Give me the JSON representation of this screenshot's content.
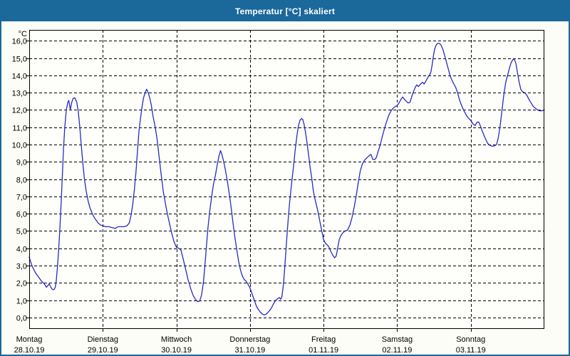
{
  "window": {
    "title": "Temperatur [°C] skaliert"
  },
  "colors": {
    "titlebar_bg": "#1b689b",
    "titlebar_text": "#ffffff",
    "window_border": "#1b689b",
    "content_bg": "#fcfdf6",
    "plot_bg": "#fefefb",
    "grid_line": "#000000",
    "axis_line": "#000000",
    "label_text": "#000000",
    "series_line": "#2a2ac4"
  },
  "chart_data": {
    "type": "line",
    "title": "Temperatur [°C] skaliert",
    "unit_label": "°C",
    "grid": "dashed",
    "legend_position": "none",
    "y_axis": {
      "min": 0,
      "max": 16,
      "tick_step": 1,
      "tick_labels": [
        "16,0",
        "15,0",
        "14,0",
        "13,0",
        "12,0",
        "11,0",
        "10,0",
        "9,0",
        "8,0",
        "7,0",
        "6,0",
        "5,0",
        "4,0",
        "3,0",
        "2,0",
        "1,0",
        "0,0"
      ]
    },
    "x_axis": {
      "total_hours": 168,
      "day_tick_hours": [
        0,
        24,
        48,
        72,
        96,
        120,
        144
      ],
      "gridline_hours": [
        24,
        48,
        72,
        96,
        120,
        144
      ],
      "days": [
        {
          "name": "Montag",
          "date": "28.10.19"
        },
        {
          "name": "Dienstag",
          "date": "29.10.19"
        },
        {
          "name": "Mittwoch",
          "date": "30.10.19"
        },
        {
          "name": "Donnerstag",
          "date": "31.10.19"
        },
        {
          "name": "Freitag",
          "date": "01.11.19"
        },
        {
          "name": "Samstag",
          "date": "02.11.19"
        },
        {
          "name": "Sonntag",
          "date": "03.11.19"
        }
      ]
    },
    "series": [
      {
        "name": "Temperatur",
        "color": "#2a2ac4",
        "points_hour_temp": [
          [
            0,
            3.5
          ],
          [
            0.5,
            3.2
          ],
          [
            1,
            2.95
          ],
          [
            2,
            2.6
          ],
          [
            3,
            2.35
          ],
          [
            4,
            2.1
          ],
          [
            4.9,
            1.95
          ],
          [
            5.6,
            1.75
          ],
          [
            6.1,
            1.85
          ],
          [
            6.5,
            1.95
          ],
          [
            7.2,
            1.7
          ],
          [
            7.7,
            1.6
          ],
          [
            8.1,
            1.62
          ],
          [
            8.5,
            1.75
          ],
          [
            8.8,
            2.1
          ],
          [
            9.2,
            2.9
          ],
          [
            9.6,
            3.9
          ],
          [
            10,
            5.1
          ],
          [
            10.4,
            6.6
          ],
          [
            10.8,
            8.2
          ],
          [
            11.2,
            9.8
          ],
          [
            11.6,
            11.0
          ],
          [
            12.1,
            12.0
          ],
          [
            12.6,
            12.45
          ],
          [
            12.9,
            12.55
          ],
          [
            13.1,
            12.35
          ],
          [
            13.4,
            12.0
          ],
          [
            13.8,
            12.4
          ],
          [
            14.3,
            12.65
          ],
          [
            14.9,
            12.7
          ],
          [
            15.5,
            12.45
          ],
          [
            16,
            11.9
          ],
          [
            16.5,
            11.0
          ],
          [
            17,
            9.9
          ],
          [
            17.5,
            8.9
          ],
          [
            18,
            8.0
          ],
          [
            18.6,
            7.3
          ],
          [
            19.2,
            6.75
          ],
          [
            19.9,
            6.3
          ],
          [
            20.7,
            5.95
          ],
          [
            21.5,
            5.7
          ],
          [
            22.3,
            5.5
          ],
          [
            23.2,
            5.35
          ],
          [
            24,
            5.3
          ],
          [
            25,
            5.25
          ],
          [
            26,
            5.25
          ],
          [
            27,
            5.2
          ],
          [
            28,
            5.15
          ],
          [
            29,
            5.25
          ],
          [
            30,
            5.25
          ],
          [
            31,
            5.25
          ],
          [
            31.8,
            5.3
          ],
          [
            32.6,
            5.45
          ],
          [
            33.2,
            5.9
          ],
          [
            33.8,
            6.6
          ],
          [
            34.3,
            7.4
          ],
          [
            34.8,
            8.4
          ],
          [
            35.3,
            9.6
          ],
          [
            35.8,
            10.8
          ],
          [
            36.3,
            11.5
          ],
          [
            36.8,
            12.2
          ],
          [
            37.3,
            12.7
          ],
          [
            37.8,
            13.0
          ],
          [
            38.3,
            13.2
          ],
          [
            38.8,
            13.0
          ],
          [
            39.3,
            12.7
          ],
          [
            39.8,
            12.3
          ],
          [
            40.4,
            11.6
          ],
          [
            41.1,
            11.0
          ],
          [
            41.7,
            10.3
          ],
          [
            42.3,
            9.4
          ],
          [
            43,
            8.3
          ],
          [
            43.7,
            7.3
          ],
          [
            44.4,
            6.6
          ],
          [
            45.1,
            5.95
          ],
          [
            45.8,
            5.4
          ],
          [
            46.5,
            4.85
          ],
          [
            47.2,
            4.4
          ],
          [
            48,
            4.05
          ],
          [
            48.8,
            4.0
          ],
          [
            49.5,
            3.9
          ],
          [
            50.2,
            3.4
          ],
          [
            51,
            2.8
          ],
          [
            51.8,
            2.2
          ],
          [
            52.6,
            1.7
          ],
          [
            53.4,
            1.3
          ],
          [
            54.2,
            1.05
          ],
          [
            54.9,
            0.92
          ],
          [
            55.6,
            0.95
          ],
          [
            56.2,
            1.3
          ],
          [
            56.8,
            2.0
          ],
          [
            57.3,
            3.0
          ],
          [
            57.8,
            4.1
          ],
          [
            58.3,
            5.2
          ],
          [
            58.9,
            6.2
          ],
          [
            59.5,
            7.0
          ],
          [
            60.1,
            7.7
          ],
          [
            60.7,
            8.2
          ],
          [
            61.3,
            8.8
          ],
          [
            61.9,
            9.35
          ],
          [
            62.4,
            9.65
          ],
          [
            62.9,
            9.4
          ],
          [
            63.5,
            8.95
          ],
          [
            64.1,
            8.4
          ],
          [
            64.7,
            7.8
          ],
          [
            65.3,
            7.1
          ],
          [
            65.9,
            6.3
          ],
          [
            66.5,
            5.4
          ],
          [
            67.1,
            4.6
          ],
          [
            67.7,
            3.9
          ],
          [
            68.3,
            3.25
          ],
          [
            68.9,
            2.75
          ],
          [
            69.5,
            2.4
          ],
          [
            70.1,
            2.2
          ],
          [
            70.7,
            2.1
          ],
          [
            71.4,
            1.9
          ],
          [
            72,
            1.7
          ],
          [
            72.7,
            1.35
          ],
          [
            73.4,
            1.0
          ],
          [
            74.1,
            0.65
          ],
          [
            74.8,
            0.45
          ],
          [
            75.4,
            0.3
          ],
          [
            76,
            0.2
          ],
          [
            76.6,
            0.15
          ],
          [
            77.2,
            0.18
          ],
          [
            77.8,
            0.28
          ],
          [
            78.4,
            0.4
          ],
          [
            79,
            0.55
          ],
          [
            79.7,
            0.8
          ],
          [
            80.4,
            1.0
          ],
          [
            81.1,
            1.1
          ],
          [
            81.6,
            1.15
          ],
          [
            82,
            1.05
          ],
          [
            82.4,
            1.2
          ],
          [
            82.9,
            1.9
          ],
          [
            83.3,
            2.8
          ],
          [
            83.7,
            3.8
          ],
          [
            84.1,
            4.8
          ],
          [
            84.5,
            5.8
          ],
          [
            84.9,
            6.6
          ],
          [
            85.3,
            7.3
          ],
          [
            85.8,
            8.1
          ],
          [
            86.3,
            8.9
          ],
          [
            86.8,
            9.8
          ],
          [
            87.3,
            10.5
          ],
          [
            87.8,
            11.1
          ],
          [
            88.3,
            11.4
          ],
          [
            88.8,
            11.5
          ],
          [
            89.2,
            11.45
          ],
          [
            89.6,
            11.2
          ],
          [
            90.1,
            10.7
          ],
          [
            90.6,
            10.1
          ],
          [
            91.1,
            9.4
          ],
          [
            91.6,
            8.7
          ],
          [
            92.1,
            8.1
          ],
          [
            92.6,
            7.4
          ],
          [
            93,
            7.0
          ],
          [
            93.6,
            6.55
          ],
          [
            94.2,
            6.1
          ],
          [
            94.8,
            5.55
          ],
          [
            95.4,
            5.0
          ],
          [
            96,
            4.5
          ],
          [
            96.6,
            4.3
          ],
          [
            97.2,
            4.2
          ],
          [
            97.8,
            4.05
          ],
          [
            98.4,
            3.8
          ],
          [
            99,
            3.6
          ],
          [
            99.6,
            3.45
          ],
          [
            100.1,
            3.55
          ],
          [
            100.6,
            4.0
          ],
          [
            101.1,
            4.5
          ],
          [
            101.7,
            4.75
          ],
          [
            102.3,
            4.9
          ],
          [
            103,
            5.0
          ],
          [
            103.8,
            5.05
          ],
          [
            104.6,
            5.35
          ],
          [
            105.3,
            5.8
          ],
          [
            106,
            6.4
          ],
          [
            106.7,
            7.1
          ],
          [
            107.4,
            7.9
          ],
          [
            108,
            8.5
          ],
          [
            108.7,
            8.9
          ],
          [
            109.4,
            9.1
          ],
          [
            110.2,
            9.25
          ],
          [
            111,
            9.38
          ],
          [
            111.5,
            9.42
          ],
          [
            112,
            9.15
          ],
          [
            112.6,
            9.12
          ],
          [
            113.2,
            9.25
          ],
          [
            113.8,
            9.6
          ],
          [
            114.5,
            10.0
          ],
          [
            115.2,
            10.5
          ],
          [
            115.9,
            10.95
          ],
          [
            116.6,
            11.35
          ],
          [
            117.3,
            11.7
          ],
          [
            118,
            11.95
          ],
          [
            118.7,
            12.1
          ],
          [
            119.4,
            12.2
          ],
          [
            120,
            12.25
          ],
          [
            120.6,
            12.4
          ],
          [
            121.2,
            12.6
          ],
          [
            121.8,
            12.75
          ],
          [
            122.4,
            12.6
          ],
          [
            123,
            12.5
          ],
          [
            123.6,
            12.4
          ],
          [
            124.2,
            12.45
          ],
          [
            124.8,
            12.8
          ],
          [
            125.4,
            13.1
          ],
          [
            126,
            13.35
          ],
          [
            126.4,
            13.45
          ],
          [
            126.9,
            13.35
          ],
          [
            127.4,
            13.45
          ],
          [
            127.9,
            13.55
          ],
          [
            128.3,
            13.6
          ],
          [
            128.8,
            13.5
          ],
          [
            129.3,
            13.65
          ],
          [
            129.9,
            13.85
          ],
          [
            130.5,
            14.0
          ],
          [
            131,
            14.2
          ],
          [
            131.4,
            14.6
          ],
          [
            131.8,
            15.1
          ],
          [
            132.2,
            15.5
          ],
          [
            132.7,
            15.75
          ],
          [
            133.2,
            15.85
          ],
          [
            133.8,
            15.85
          ],
          [
            134.3,
            15.75
          ],
          [
            134.9,
            15.5
          ],
          [
            135.5,
            15.15
          ],
          [
            136.1,
            14.75
          ],
          [
            136.7,
            14.35
          ],
          [
            137.3,
            13.95
          ],
          [
            137.9,
            13.7
          ],
          [
            138.5,
            13.5
          ],
          [
            139.1,
            13.3
          ],
          [
            139.7,
            13.0
          ],
          [
            140.3,
            12.6
          ],
          [
            140.9,
            12.3
          ],
          [
            141.5,
            12.05
          ],
          [
            142.1,
            11.85
          ],
          [
            142.7,
            11.65
          ],
          [
            143.4,
            11.5
          ],
          [
            144,
            11.4
          ],
          [
            144.7,
            11.2
          ],
          [
            145.4,
            11.1
          ],
          [
            146.1,
            11.3
          ],
          [
            146.6,
            11.3
          ],
          [
            147.2,
            11.05
          ],
          [
            147.8,
            10.75
          ],
          [
            148.4,
            10.5
          ],
          [
            149,
            10.25
          ],
          [
            149.6,
            10.05
          ],
          [
            150.3,
            9.95
          ],
          [
            151,
            9.9
          ],
          [
            151.7,
            9.92
          ],
          [
            152.4,
            10.0
          ],
          [
            153,
            10.4
          ],
          [
            153.6,
            11.1
          ],
          [
            154.2,
            12.0
          ],
          [
            154.8,
            12.9
          ],
          [
            155.4,
            13.6
          ],
          [
            156,
            14.0
          ],
          [
            156.6,
            14.4
          ],
          [
            157.2,
            14.75
          ],
          [
            157.8,
            14.92
          ],
          [
            158.2,
            14.95
          ],
          [
            158.7,
            14.7
          ],
          [
            159.2,
            14.2
          ],
          [
            159.8,
            13.6
          ],
          [
            160.3,
            13.2
          ],
          [
            160.9,
            13.05
          ],
          [
            161.6,
            13.0
          ],
          [
            162.3,
            12.85
          ],
          [
            163,
            12.6
          ],
          [
            163.7,
            12.4
          ],
          [
            164.4,
            12.2
          ],
          [
            165.1,
            12.1
          ],
          [
            165.8,
            12.0
          ],
          [
            166.5,
            11.95
          ],
          [
            167.2,
            11.95
          ],
          [
            168,
            12.0
          ]
        ]
      }
    ]
  }
}
